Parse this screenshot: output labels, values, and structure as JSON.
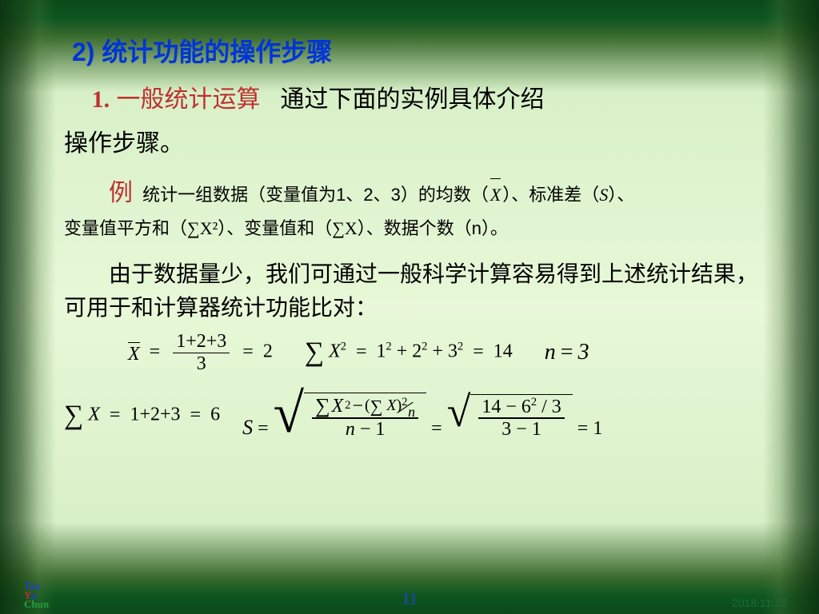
{
  "heading": {
    "num": "2)",
    "text": "统计功能的操作步骤"
  },
  "intro": {
    "lead_num": "1.",
    "red_text": "一般统计运算",
    "black_text": "通过下面的实例具体介绍",
    "cont": "操作步骤。"
  },
  "example": {
    "lead": "例",
    "seg1": "统计一组数据（变量值为1、2、3）的均数（",
    "seg2": "）、标准差（",
    "seg3": "）、",
    "line2a": "变量值平方和（",
    "line2b": "）、变量值和（",
    "line2c": "）、数据个数（n）。",
    "S": "S",
    "sumX2": "∑X²",
    "sumX": "∑X",
    "xbar": "X"
  },
  "body": "由于数据量少，我们可通过一般科学计算容易得到上述统计结果，可用于和计算器统计功能比对：",
  "formulas": {
    "xbar_top": "1+2+3",
    "xbar_bot": "3",
    "xbar_res": "2",
    "sumx2_expr": "1² + 2² + 3²",
    "sumx2_res": "14",
    "n_val": "3",
    "sumx_expr": "1+2+3",
    "sumx_res": "6",
    "s_rad1_inner_top_a": "X",
    "s_numer_sigma2": "∑",
    "s_bot": "n − 1",
    "s_rad2_top": "14 − 6² / 3",
    "s_rad2_bot": "3 − 1",
    "s_res": "1"
  },
  "footer": {
    "logo_l1": "Tao",
    "logo_l2a": "Y",
    "logo_l2b": "u",
    "logo_l3": "Chun",
    "page": "11",
    "date": "2018.11.15"
  },
  "colors": {
    "blue": "#0034d8",
    "red": "#c03030",
    "green_date": "#1a6a3a",
    "page_blue": "#1a4a8a"
  }
}
